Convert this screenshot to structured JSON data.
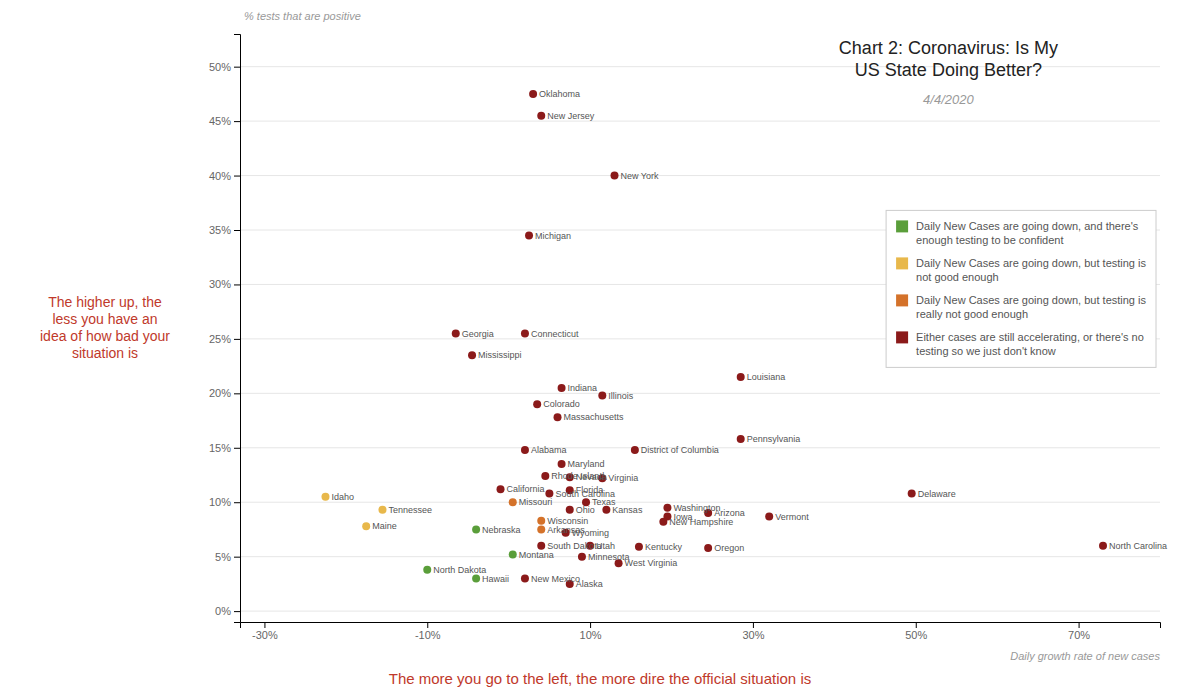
{
  "chart_data": {
    "type": "scatter",
    "title": "Chart 2: Coronavirus: Is My\nUS State Doing Better?",
    "subtitle": "4/4/2020",
    "x_label": "Daily growth rate of new cases",
    "y_label": "% tests that are positive",
    "annotations": [
      "The more you go to the left, the more dire the official situation is",
      "The higher up, the\nless you have an\nidea of how bad your\nsituation is"
    ],
    "xlim": [
      -0.33,
      0.8
    ],
    "ylim": [
      -0.01,
      0.53
    ],
    "xticks": [
      {
        "value": -0.3,
        "label": "-30%"
      },
      {
        "value": -0.1,
        "label": "-10%"
      },
      {
        "value": 0.1,
        "label": "10%"
      },
      {
        "value": 0.3,
        "label": "30%"
      },
      {
        "value": 0.5,
        "label": "50%"
      },
      {
        "value": 0.7,
        "label": "70%"
      }
    ],
    "yticks": [
      {
        "value": 0.0,
        "label": "0%"
      },
      {
        "value": 0.05,
        "label": "5%"
      },
      {
        "value": 0.1,
        "label": "10%"
      },
      {
        "value": 0.15,
        "label": "15%"
      },
      {
        "value": 0.2,
        "label": "20%"
      },
      {
        "value": 0.25,
        "label": "25%"
      },
      {
        "value": 0.3,
        "label": "30%"
      },
      {
        "value": 0.35,
        "label": "35%"
      },
      {
        "value": 0.4,
        "label": "40%"
      },
      {
        "value": 0.45,
        "label": "45%"
      },
      {
        "value": 0.5,
        "label": "50%"
      }
    ],
    "grid": true,
    "legend": "upper right",
    "legend_entries": [
      {
        "color": "#5a9e3a",
        "label": "Daily New Cases are going down, and there's\nenough testing to be confident"
      },
      {
        "color": "#e8b84b",
        "label": "Daily New Cases are going down, but testing is\nnot good enough"
      },
      {
        "color": "#d4722a",
        "label": "Daily New Cases are going down, but testing is\nreally not good enough"
      },
      {
        "color": "#8b1a1a",
        "label": "Either cases are still accelerating, or there's no\ntesting so we just don't know"
      }
    ],
    "point_labels": [
      "Oklahoma",
      "New Jersey",
      "New York",
      "Michigan",
      "Georgia",
      "Connecticut",
      "Mississippi",
      "Louisiana",
      "Indiana",
      "Illinois",
      "Colorado",
      "Massachusetts",
      "Pennsylvania",
      "Alabama",
      "District of Columbia",
      "Maryland",
      "Rhode Island",
      "Nevada",
      "Virginia",
      "California",
      "South Carolina",
      "Florida",
      "Delaware",
      "Missouri",
      "Texas",
      "Ohio",
      "Kansas",
      "Washington",
      "Iowa",
      "Arizona",
      "Vermont",
      "Idaho",
      "Tennessee",
      "Wisconsin",
      "New Hampshire",
      "Arkansas",
      "Maine",
      "Nebraska",
      "Wyoming",
      "South Dakota",
      "Utah",
      "Kentucky",
      "Oregon",
      "Montana",
      "Minnesota",
      "West Virginia",
      "North Dakota",
      "Hawaii",
      "New Mexico",
      "Alaska",
      "North Carolina"
    ],
    "x": [
      0.03,
      0.04,
      0.13,
      0.025,
      -0.065,
      0.02,
      -0.045,
      0.285,
      0.065,
      0.115,
      0.035,
      0.06,
      0.285,
      0.02,
      0.155,
      0.065,
      0.045,
      0.075,
      0.115,
      -0.01,
      0.05,
      0.075,
      0.495,
      0.005,
      0.095,
      0.075,
      0.12,
      0.195,
      0.195,
      0.245,
      0.32,
      -0.225,
      -0.155,
      0.04,
      0.19,
      0.04,
      -0.175,
      -0.04,
      0.07,
      0.04,
      0.1,
      0.16,
      0.245,
      0.005,
      0.09,
      0.135,
      -0.1,
      -0.04,
      0.02,
      0.075,
      0.73
    ],
    "values": [
      0.475,
      0.455,
      0.4,
      0.345,
      0.255,
      0.255,
      0.235,
      0.215,
      0.205,
      0.198,
      0.19,
      0.178,
      0.158,
      0.148,
      0.148,
      0.135,
      0.124,
      0.123,
      0.122,
      0.112,
      0.108,
      0.111,
      0.108,
      0.1,
      0.1,
      0.093,
      0.093,
      0.095,
      0.087,
      0.09,
      0.087,
      0.105,
      0.093,
      0.083,
      0.082,
      0.075,
      0.078,
      0.075,
      0.072,
      0.06,
      0.06,
      0.059,
      0.058,
      0.052,
      0.05,
      0.044,
      0.038,
      0.03,
      0.03,
      0.025,
      0.06
    ],
    "colors": [
      "#8b1a1a",
      "#8b1a1a",
      "#8b1a1a",
      "#8b1a1a",
      "#8b1a1a",
      "#8b1a1a",
      "#8b1a1a",
      "#8b1a1a",
      "#8b1a1a",
      "#8b1a1a",
      "#8b1a1a",
      "#8b1a1a",
      "#8b1a1a",
      "#8b1a1a",
      "#8b1a1a",
      "#8b1a1a",
      "#8b1a1a",
      "#8b1a1a",
      "#8b1a1a",
      "#8b1a1a",
      "#8b1a1a",
      "#8b1a1a",
      "#8b1a1a",
      "#d4722a",
      "#8b1a1a",
      "#8b1a1a",
      "#8b1a1a",
      "#8b1a1a",
      "#8b1a1a",
      "#8b1a1a",
      "#8b1a1a",
      "#e8b84b",
      "#e8b84b",
      "#d4722a",
      "#8b1a1a",
      "#d4722a",
      "#e8b84b",
      "#5a9e3a",
      "#8b1a1a",
      "#8b1a1a",
      "#8b1a1a",
      "#8b1a1a",
      "#8b1a1a",
      "#5a9e3a",
      "#8b1a1a",
      "#8b1a1a",
      "#5a9e3a",
      "#5a9e3a",
      "#8b1a1a",
      "#8b1a1a",
      "#8b1a1a"
    ]
  }
}
